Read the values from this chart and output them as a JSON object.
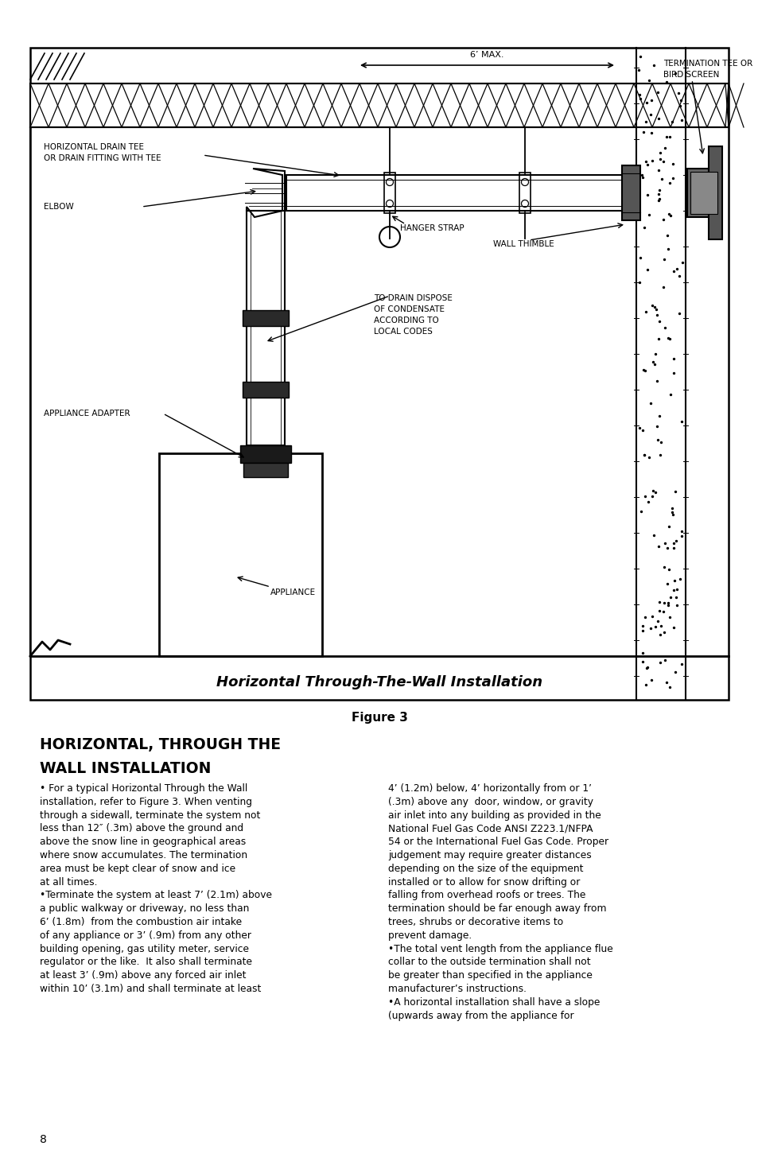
{
  "page_bg": "#ffffff",
  "figure_caption": "Figure 3",
  "diagram_title": "Horizontal Through-The-Wall Installation",
  "section_title_line1": "HORIZONTAL, THROUGH THE",
  "section_title_line2": "WALL INSTALLATION",
  "left_col_text_parts": [
    {
      "text": "• For a typical Horizontal Through the Wall\ninstallation, refer to ",
      "bold": false
    },
    {
      "text": "Figure 3.",
      "bold": true
    },
    {
      "text": " When venting\nthrough a sidewall, terminate the system not\nless than 12″ (.3m) above the ground and\nabove the snow line in geographical areas\nwhere snow accumulates. The termination\narea must be kept clear of snow and ice\nat all times.\n•Terminate the system at least 7’ (2.1m) above\na public walkway or driveway, no less than\n6’ (1.8m)  from the combustion air intake\nof any appliance or 3’ (.9m) from any other\nbuilding opening, gas utility meter, service\nregulator or the like.  It also shall terminate\nat least 3’ (.9m) above any forced air inlet\nwithin 10’ (3.1m) and shall terminate at least",
      "bold": false
    }
  ],
  "right_col_text": "4’ (1.2m) below, 4’ horizontally from or 1’\n(.3m) above any  door, window, or gravity\nair inlet into any building as provided in the\nNational Fuel Gas Code ANSI Z223.1/NFPA\n54 or the International Fuel Gas Code. Proper\njudgement may require greater distances\ndepending on the size of the equipment\ninstalled or to allow for snow drifting or\nfalling from overhead roofs or trees. The\ntermination should be far enough away from\ntrees, shrubs or decorative items to\nprevent damage.\n•The total vent length from the appliance flue\ncollar to the outside termination shall not\nbe greater than specified in the appliance\nmanufacturer’s instructions.\n•A horizontal installation shall have a slope\n(upwards away from the appliance for",
  "page_number": "8",
  "labels": {
    "termination_tee": "TERMINATION TEE OR\nBIRD SCREEN",
    "horizontal_drain": "HORIZONTAL DRAIN TEE\nOR DRAIN FITTING WITH TEE",
    "elbow": "ELBOW",
    "hanger_strap": "HANGER STRAP",
    "wall_thimble": "WALL THIMBLE",
    "to_drain": "TO DRAIN DISPOSE\nOF CONDENSATE\nACCORDING TO\nLOCAL CODES",
    "appliance_adapter": "APPLIANCE ADAPTER",
    "appliance": "APPLIANCE",
    "six_max": "6’ MAX."
  }
}
